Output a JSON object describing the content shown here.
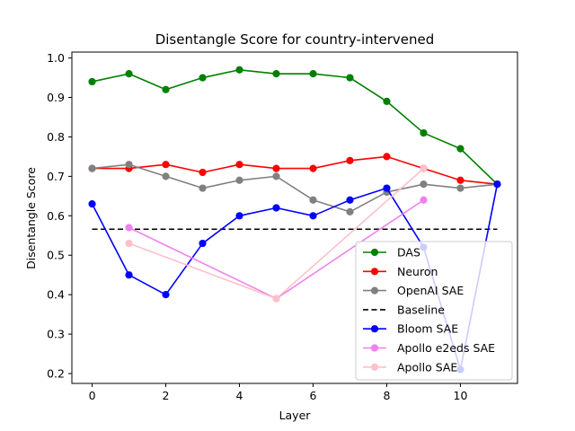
{
  "chart_data": {
    "type": "line",
    "title": "Disentangle Score for country-intervened",
    "xlabel": "Layer",
    "ylabel": "Disentangle Score",
    "xlim": [
      -0.55,
      11.55
    ],
    "ylim": [
      0.175,
      1.015
    ],
    "x_ticks": [
      0,
      2,
      4,
      6,
      8,
      10
    ],
    "x_tick_labels": [
      "0",
      "2",
      "4",
      "6",
      "8",
      "10"
    ],
    "y_ticks": [
      0.2,
      0.3,
      0.4,
      0.5,
      0.6,
      0.7,
      0.8,
      0.9,
      1.0
    ],
    "y_tick_labels": [
      "0.2",
      "0.3",
      "0.4",
      "0.5",
      "0.6",
      "0.7",
      "0.8",
      "0.9",
      "1.0"
    ],
    "grid": false,
    "legend_position": "lower-right",
    "baseline": {
      "name": "Baseline",
      "value": 0.566,
      "x_range": [
        0,
        11
      ],
      "color": "#000000",
      "style": "dashed"
    },
    "series": [
      {
        "name": "DAS",
        "color": "#008000",
        "x": [
          0,
          1,
          2,
          3,
          4,
          5,
          6,
          7,
          8,
          9,
          10,
          11
        ],
        "y": [
          0.94,
          0.96,
          0.92,
          0.95,
          0.97,
          0.96,
          0.96,
          0.95,
          0.89,
          0.81,
          0.77,
          0.68
        ]
      },
      {
        "name": "Neuron",
        "color": "#ff0000",
        "x": [
          0,
          1,
          2,
          3,
          4,
          5,
          6,
          7,
          8,
          9,
          10,
          11
        ],
        "y": [
          0.72,
          0.72,
          0.73,
          0.71,
          0.73,
          0.72,
          0.72,
          0.74,
          0.75,
          0.72,
          0.69,
          0.68
        ]
      },
      {
        "name": "OpenAI SAE",
        "color": "#808080",
        "x": [
          0,
          1,
          2,
          3,
          4,
          5,
          6,
          7,
          8,
          9,
          10,
          11
        ],
        "y": [
          0.72,
          0.73,
          0.7,
          0.67,
          0.69,
          0.7,
          0.64,
          0.61,
          0.66,
          0.68,
          0.67,
          0.68
        ]
      },
      {
        "name": "Bloom SAE",
        "color": "#0000ff",
        "x": [
          0,
          1,
          2,
          3,
          4,
          5,
          6,
          7,
          8,
          9,
          10,
          11
        ],
        "y": [
          0.63,
          0.45,
          0.4,
          0.53,
          0.6,
          0.62,
          0.6,
          0.64,
          0.67,
          0.52,
          0.21,
          0.68
        ]
      },
      {
        "name": "Apollo e2eds SAE",
        "color": "#ee82ee",
        "x": [
          1,
          5,
          9
        ],
        "y": [
          0.57,
          0.39,
          0.64
        ]
      },
      {
        "name": "Apollo SAE",
        "color": "#ffc0cb",
        "x": [
          1,
          5,
          9
        ],
        "y": [
          0.53,
          0.39,
          0.72
        ]
      }
    ],
    "legend_order": [
      "DAS",
      "Neuron",
      "OpenAI SAE",
      "Baseline",
      "Bloom SAE",
      "Apollo e2eds SAE",
      "Apollo SAE"
    ]
  }
}
